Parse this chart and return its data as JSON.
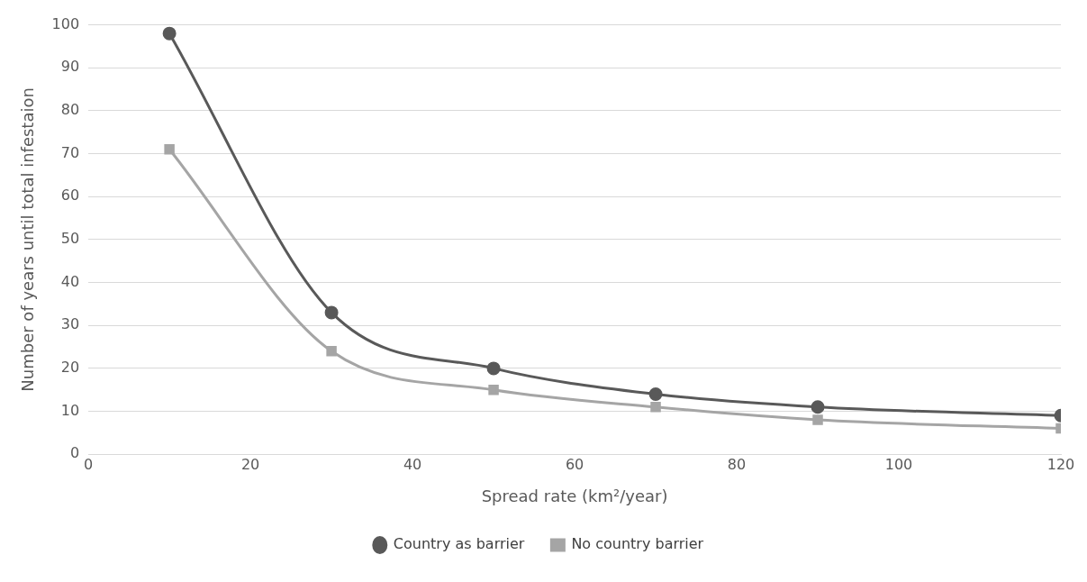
{
  "chart_data": {
    "type": "line",
    "xlabel": "Spread rate (km²/year)",
    "ylabel": "Number of years until total infestaion",
    "xlim": [
      0,
      120
    ],
    "xticks": [
      0,
      20,
      40,
      60,
      80,
      100,
      120
    ],
    "ylim": [
      0,
      100
    ],
    "yticks": [
      0,
      10,
      20,
      30,
      40,
      50,
      60,
      70,
      80,
      90,
      100
    ],
    "grid": "y",
    "legend": "bottom",
    "line_style": "solid",
    "x": [
      10,
      30,
      50,
      70,
      90,
      120
    ],
    "series": [
      {
        "name": "Country as barrier",
        "color": "#595959",
        "marker": "circle",
        "values": [
          98,
          33,
          20,
          14,
          11,
          9
        ]
      },
      {
        "name": "No country barrier",
        "color": "#a5a5a5",
        "marker": "square",
        "values": [
          71,
          24,
          15,
          11,
          8,
          6
        ]
      }
    ]
  }
}
